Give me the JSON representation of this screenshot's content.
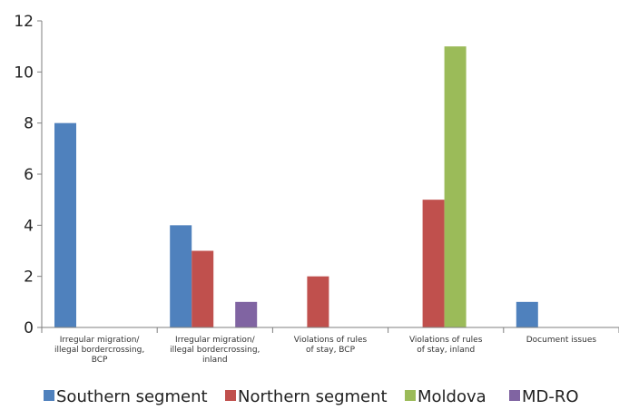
{
  "chart_data": {
    "type": "bar",
    "title": "",
    "xlabel": "",
    "ylabel": "",
    "ylim": [
      0,
      12
    ],
    "yticks": [
      0,
      2,
      4,
      6,
      8,
      10,
      12
    ],
    "grid": false,
    "legend_position": "bottom",
    "categories": [
      [
        "Irregular migration/",
        "illegal bordercrossing,",
        "BCP"
      ],
      [
        "Irregular migration/",
        "illegal bordercrossing,",
        "inland"
      ],
      [
        "Violations of rules",
        "of stay, BCP"
      ],
      [
        "Violations of rules",
        "of stay, inland"
      ],
      [
        "Document issues"
      ]
    ],
    "series": [
      {
        "name": "Southern segment",
        "color": "#4f81bd",
        "values": [
          8,
          4,
          0,
          0,
          1
        ]
      },
      {
        "name": "Northern segment",
        "color": "#c0504d",
        "values": [
          0,
          3,
          2,
          5,
          0
        ]
      },
      {
        "name": "Moldova",
        "color": "#9bbb59",
        "values": [
          0,
          0,
          0,
          11,
          0
        ]
      },
      {
        "name": "MD-RO",
        "color": "#8064a2",
        "values": [
          0,
          1,
          0,
          0,
          0
        ]
      }
    ]
  }
}
